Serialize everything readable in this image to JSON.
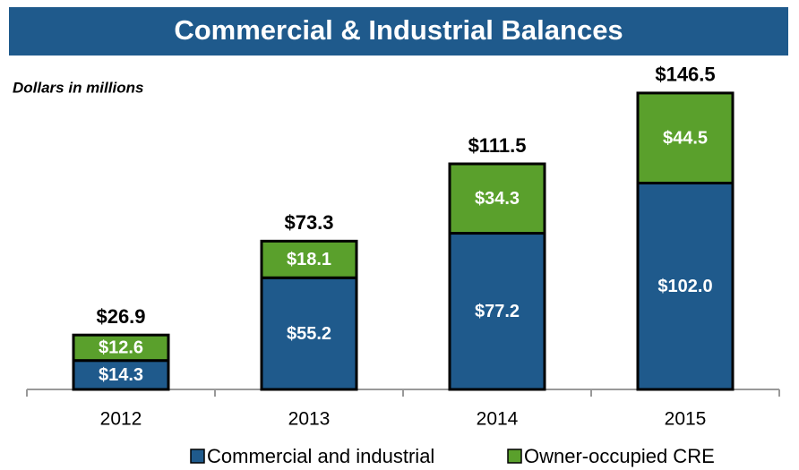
{
  "chart_data": {
    "type": "stacked_bar",
    "title": "Commercial & Industrial Balances",
    "subtitle": "Dollars in millions",
    "categories": [
      "2012",
      "2013",
      "2014",
      "2015"
    ],
    "series": [
      {
        "name": "Commercial and industrial",
        "color": "#1f5a8c",
        "values": [
          14.3,
          55.2,
          77.2,
          102.0
        ],
        "value_labels": [
          "$14.3",
          "$55.2",
          "$77.2",
          "$102.0"
        ]
      },
      {
        "name": "Owner-occupied CRE",
        "color": "#5aa02c",
        "values": [
          12.6,
          18.1,
          34.3,
          44.5
        ],
        "value_labels": [
          "$12.6",
          "$18.1",
          "$34.3",
          "$44.5"
        ]
      }
    ],
    "totals": [
      26.9,
      73.3,
      111.5,
      146.5
    ],
    "total_labels": [
      "$26.9",
      "$73.3",
      "$111.5",
      "$146.5"
    ],
    "ylim": [
      0,
      150
    ],
    "legend": "bottom"
  }
}
